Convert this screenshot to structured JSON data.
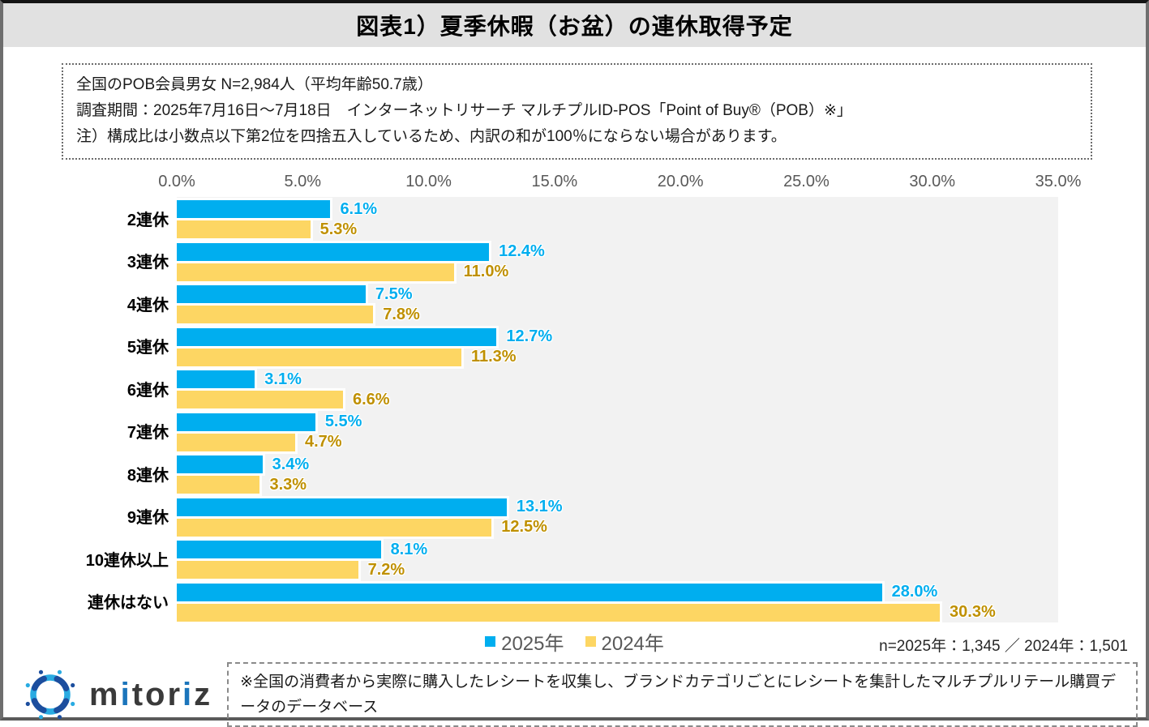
{
  "window": {
    "title": "図表1）夏季休暇（お盆）の連休取得予定"
  },
  "info_box": {
    "lines": [
      "全国のPOB会員男女 N=2,984人（平均年齢50.7歳）",
      "調査期間：2025年7月16日～7月18日　インターネットリサーチ マルチプルID-POS「Point of Buy®（POB）※」",
      "注）構成比は小数点以下第2位を四捨五入しているため、内訳の和が100％にならない場合があります。"
    ]
  },
  "chart_data": {
    "type": "bar",
    "orientation": "horizontal",
    "title": "夏季休暇（お盆）の連休取得予定",
    "categories": [
      "2連休",
      "3連休",
      "4連休",
      "5連休",
      "6連休",
      "7連休",
      "8連休",
      "9連休",
      "10連休以上",
      "連休はない"
    ],
    "series": [
      {
        "name": "2025年",
        "color": "#00AEEF",
        "label_color": "#00AEEF",
        "values": [
          6.1,
          12.4,
          7.5,
          12.7,
          3.1,
          5.5,
          3.4,
          13.1,
          8.1,
          28.0
        ]
      },
      {
        "name": "2024年",
        "color": "#FDD663",
        "label_color": "#BF9000",
        "values": [
          5.3,
          11.0,
          7.8,
          11.3,
          6.6,
          4.7,
          3.3,
          12.5,
          7.2,
          30.3
        ]
      }
    ],
    "x_ticks": [
      "0.0%",
      "5.0%",
      "10.0%",
      "15.0%",
      "20.0%",
      "25.0%",
      "30.0%",
      "35.0%"
    ],
    "xlim": [
      0,
      35
    ],
    "value_suffix": "%",
    "grid": false,
    "legend_position": "bottom",
    "plot_background": "#F2F2F2"
  },
  "sample_note": "n=2025年：1,345 ／ 2024年：1,501",
  "footer": {
    "logo_text_parts": {
      "m": "m",
      "i1": "i",
      "tor": "tor",
      "i2": "i",
      "z": "z"
    },
    "logo_name": "mitoriz",
    "note": "※全国の消費者から実際に購入したレシートを収集し、ブランドカテゴリごとにレシートを集計したマルチプルリテール購買データのデータベース"
  },
  "colors": {
    "titlebar_bg": "#E1E1E1",
    "plot_bg": "#F2F2F2",
    "tick_text": "#595959",
    "legend_text": "#595959",
    "logo_light_blue": "#29ABE2",
    "logo_dark_blue": "#1C4E9E"
  }
}
